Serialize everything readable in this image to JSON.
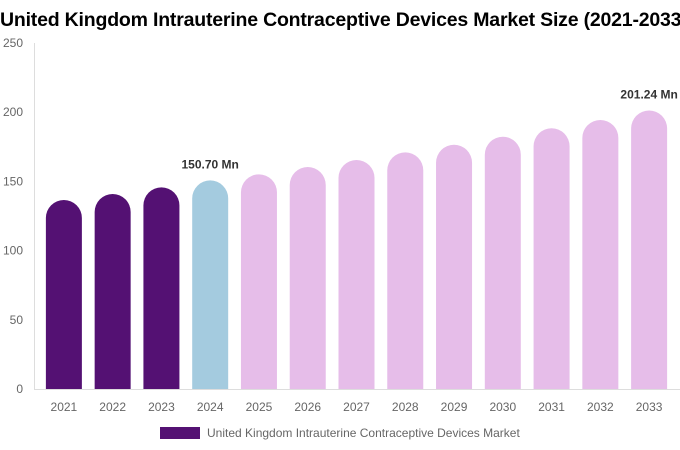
{
  "chart_data": {
    "type": "bar",
    "title": "United Kingdom Intrauterine Contraceptive Devices Market Size (2021-2033)",
    "categories": [
      "2021",
      "2022",
      "2023",
      "2024",
      "2025",
      "2026",
      "2027",
      "2028",
      "2029",
      "2030",
      "2031",
      "2032",
      "2033"
    ],
    "series": [
      {
        "name": "United Kingdom Intrauterine Contraceptive Devices Market",
        "values": [
          136.6,
          140.9,
          145.7,
          150.7,
          155.1,
          160.4,
          165.5,
          171.0,
          176.5,
          182.3,
          188.4,
          194.4,
          201.24
        ]
      }
    ],
    "data_labels": [
      {
        "category": "2024",
        "text": "150.70 Mn"
      },
      {
        "category": "2033",
        "text": "201.24 Mn"
      }
    ],
    "ylim": [
      0,
      250
    ],
    "yticks": [
      0,
      50,
      100,
      150,
      200,
      250
    ],
    "grid": false,
    "legend": "bottom",
    "colors": {
      "historical": "#541173",
      "current": "#a4cbdf",
      "forecast": "#e6bde9",
      "legend": "#541173"
    }
  }
}
